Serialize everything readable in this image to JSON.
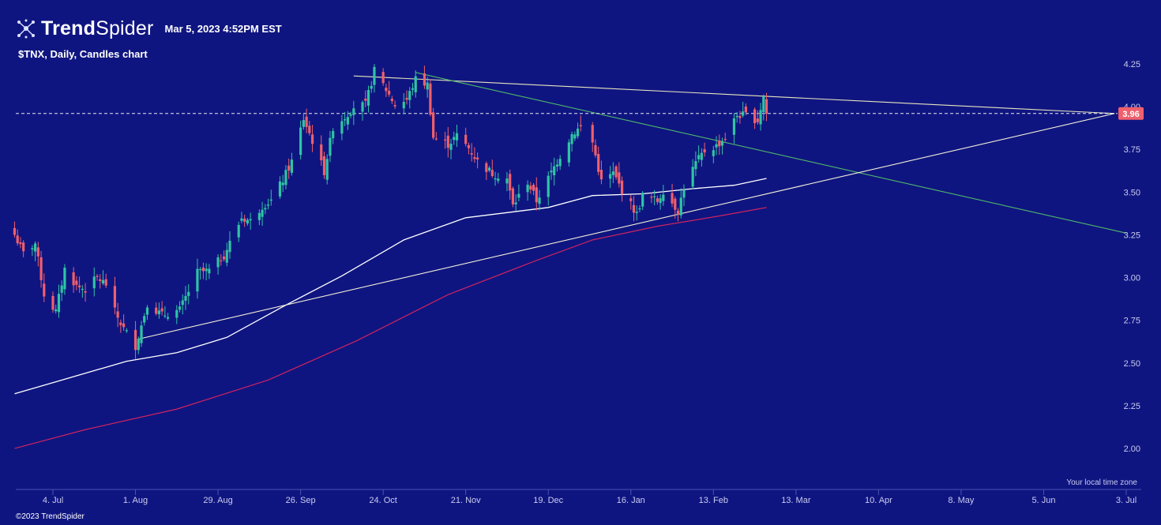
{
  "header": {
    "brand_bold": "Trend",
    "brand_light": "Spider",
    "timestamp": "Mar 5, 2023 4:52PM EST",
    "symbol_line": "$TNX, Daily, Candles chart"
  },
  "footer": {
    "copyright": "©2023 TrendSpider",
    "timezone_note": "Your local time zone"
  },
  "colors": {
    "background": "#0f1580",
    "up_candle": "#2fc4a4",
    "down_candle": "#ef5f6c",
    "ma_white": "#ffffff",
    "ma_red": "#e0245e",
    "trend_top": "#e8e6c0",
    "trend_green": "#4fb86a",
    "trend_bottom": "#f2f0d8"
  },
  "chart_data": {
    "type": "candlestick",
    "symbol": "$TNX",
    "interval": "Daily",
    "last_price": "3.96",
    "y_ticks": [
      "4.25",
      "4.00",
      "3.75",
      "3.50",
      "3.25",
      "3.00",
      "2.75",
      "2.50",
      "2.25",
      "2.00"
    ],
    "ylim": [
      1.85,
      4.35
    ],
    "x_ticks": [
      "4. Jul",
      "1. Aug",
      "29. Aug",
      "26. Sep",
      "24. Oct",
      "21. Nov",
      "19. Dec",
      "16. Jan",
      "13. Feb",
      "13. Mar",
      "10. Apr",
      "8. May",
      "5. Jun",
      "3. Jul"
    ],
    "x_tick_dates": [
      "2022-07-04",
      "2022-08-01",
      "2022-08-29",
      "2022-09-26",
      "2022-10-24",
      "2022-11-21",
      "2022-12-19",
      "2023-01-16",
      "2023-02-13",
      "2023-03-13",
      "2023-04-10",
      "2023-05-08",
      "2023-06-05",
      "2023-07-03"
    ],
    "candle_sessions": [
      [
        "2022-06-21",
        "2022-07-29"
      ],
      [
        "2022-08-01",
        "2022-08-31"
      ],
      [
        "2022-09-01",
        "2022-09-30"
      ],
      [
        "2022-10-03",
        "2022-10-31"
      ],
      [
        "2022-11-01",
        "2022-11-30"
      ],
      [
        "2022-12-01",
        "2022-12-30"
      ],
      [
        "2023-01-03",
        "2023-01-31"
      ],
      [
        "2023-02-01",
        "2023-03-03"
      ]
    ],
    "close_path": [
      [
        "2022-06-21",
        3.25
      ],
      [
        "2022-06-24",
        3.14
      ],
      [
        "2022-06-28",
        3.2
      ],
      [
        "2022-07-01",
        2.9
      ],
      [
        "2022-07-05",
        2.8
      ],
      [
        "2022-07-08",
        3.05
      ],
      [
        "2022-07-12",
        2.95
      ],
      [
        "2022-07-15",
        2.93
      ],
      [
        "2022-07-19",
        3.0
      ],
      [
        "2022-07-22",
        2.96
      ],
      [
        "2022-07-25",
        2.8
      ],
      [
        "2022-07-28",
        2.7
      ],
      [
        "2022-08-01",
        2.6
      ],
      [
        "2022-08-03",
        2.72
      ],
      [
        "2022-08-05",
        2.85
      ],
      [
        "2022-08-10",
        2.78
      ],
      [
        "2022-08-16",
        2.81
      ],
      [
        "2022-08-22",
        3.03
      ],
      [
        "2022-08-26",
        3.04
      ],
      [
        "2022-08-31",
        3.13
      ],
      [
        "2022-09-06",
        3.35
      ],
      [
        "2022-09-09",
        3.33
      ],
      [
        "2022-09-13",
        3.42
      ],
      [
        "2022-09-16",
        3.45
      ],
      [
        "2022-09-20",
        3.57
      ],
      [
        "2022-09-23",
        3.68
      ],
      [
        "2022-09-27",
        3.93
      ],
      [
        "2022-09-30",
        3.8
      ],
      [
        "2022-10-04",
        3.62
      ],
      [
        "2022-10-07",
        3.88
      ],
      [
        "2022-10-11",
        3.94
      ],
      [
        "2022-10-14",
        4.0
      ],
      [
        "2022-10-18",
        4.01
      ],
      [
        "2022-10-21",
        4.21
      ],
      [
        "2022-10-25",
        4.1
      ],
      [
        "2022-10-28",
        4.01
      ],
      [
        "2022-11-01",
        4.04
      ],
      [
        "2022-11-04",
        4.16
      ],
      [
        "2022-11-08",
        4.13
      ],
      [
        "2022-11-10",
        3.82
      ],
      [
        "2022-11-15",
        3.78
      ],
      [
        "2022-11-18",
        3.83
      ],
      [
        "2022-11-22",
        3.76
      ],
      [
        "2022-11-25",
        3.68
      ],
      [
        "2022-11-30",
        3.61
      ],
      [
        "2022-12-05",
        3.58
      ],
      [
        "2022-12-07",
        3.42
      ],
      [
        "2022-12-12",
        3.56
      ],
      [
        "2022-12-15",
        3.45
      ],
      [
        "2022-12-19",
        3.58
      ],
      [
        "2022-12-22",
        3.68
      ],
      [
        "2022-12-27",
        3.84
      ],
      [
        "2022-12-30",
        3.88
      ],
      [
        "2023-01-03",
        3.79
      ],
      [
        "2023-01-06",
        3.56
      ],
      [
        "2023-01-10",
        3.61
      ],
      [
        "2023-01-13",
        3.51
      ],
      [
        "2023-01-18",
        3.37
      ],
      [
        "2023-01-20",
        3.48
      ],
      [
        "2023-01-25",
        3.45
      ],
      [
        "2023-01-27",
        3.51
      ],
      [
        "2023-02-01",
        3.39
      ],
      [
        "2023-02-03",
        3.53
      ],
      [
        "2023-02-07",
        3.67
      ],
      [
        "2023-02-10",
        3.74
      ],
      [
        "2023-02-14",
        3.77
      ],
      [
        "2023-02-17",
        3.82
      ],
      [
        "2023-02-21",
        3.95
      ],
      [
        "2023-02-24",
        3.95
      ],
      [
        "2023-02-28",
        3.92
      ],
      [
        "2023-03-02",
        4.06
      ],
      [
        "2023-03-03",
        3.96
      ]
    ],
    "moving_averages": [
      {
        "color": "white",
        "points": [
          [
            "2022-06-21",
            2.32
          ],
          [
            "2022-07-05",
            2.39
          ],
          [
            "2022-07-29",
            2.51
          ],
          [
            "2022-08-15",
            2.56
          ],
          [
            "2022-09-01",
            2.65
          ],
          [
            "2022-09-20",
            2.83
          ],
          [
            "2022-10-10",
            3.01
          ],
          [
            "2022-10-31",
            3.22
          ],
          [
            "2022-11-21",
            3.35
          ],
          [
            "2022-12-05",
            3.38
          ],
          [
            "2022-12-19",
            3.41
          ],
          [
            "2023-01-03",
            3.48
          ],
          [
            "2023-01-20",
            3.49
          ],
          [
            "2023-02-06",
            3.52
          ],
          [
            "2023-02-20",
            3.54
          ],
          [
            "2023-03-03",
            3.58
          ]
        ]
      },
      {
        "color": "red",
        "points": [
          [
            "2022-06-21",
            2.0
          ],
          [
            "2022-07-15",
            2.11
          ],
          [
            "2022-08-15",
            2.23
          ],
          [
            "2022-09-15",
            2.4
          ],
          [
            "2022-10-15",
            2.63
          ],
          [
            "2022-11-15",
            2.9
          ],
          [
            "2022-12-15",
            3.1
          ],
          [
            "2023-01-03",
            3.22
          ],
          [
            "2023-01-25",
            3.3
          ],
          [
            "2023-02-15",
            3.36
          ],
          [
            "2023-03-03",
            3.41
          ]
        ]
      }
    ],
    "trend_lines": [
      {
        "color": "cream",
        "from": [
          "2022-10-14",
          4.18
        ],
        "to": [
          "2023-06-29",
          3.96
        ]
      },
      {
        "color": "green",
        "from": [
          "2022-11-04",
          4.2
        ],
        "to": [
          "2023-07-03",
          3.26
        ]
      },
      {
        "color": "cream",
        "from": [
          "2022-08-02",
          2.64
        ],
        "to": [
          "2023-06-29",
          3.96
        ]
      }
    ],
    "price_line": 3.96,
    "grid": false,
    "legend": "none"
  }
}
